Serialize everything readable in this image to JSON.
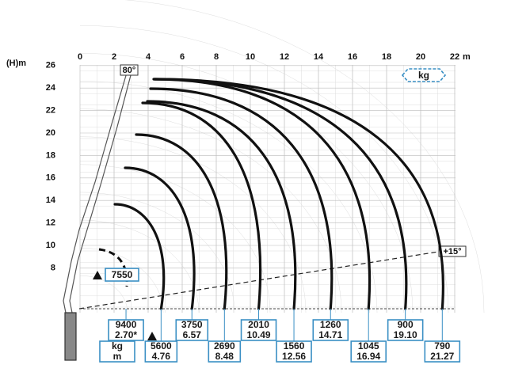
{
  "axes": {
    "y_label": "(H)m",
    "x_unit": "m",
    "xticks": [
      0,
      2,
      4,
      6,
      8,
      10,
      12,
      14,
      16,
      18,
      20,
      22
    ],
    "yticks": [
      8,
      10,
      12,
      14,
      16,
      18,
      20,
      22,
      24,
      26
    ]
  },
  "angles": {
    "max": "80°",
    "min": "+15°"
  },
  "unit_box": "kg",
  "max_load": "7550",
  "legend": {
    "kg": "kg",
    "m": "m"
  },
  "loads": [
    {
      "kg": "9400",
      "m": "2.70*"
    },
    {
      "kg": "5600",
      "m": "4.76"
    },
    {
      "kg": "3750",
      "m": "6.57"
    },
    {
      "kg": "2690",
      "m": "8.48"
    },
    {
      "kg": "2010",
      "m": "10.49"
    },
    {
      "kg": "1560",
      "m": "12.56"
    },
    {
      "kg": "1260",
      "m": "14.71"
    },
    {
      "kg": "1045",
      "m": "16.94"
    },
    {
      "kg": "900",
      "m": "19.10"
    },
    {
      "kg": "790",
      "m": "21.27"
    }
  ]
}
